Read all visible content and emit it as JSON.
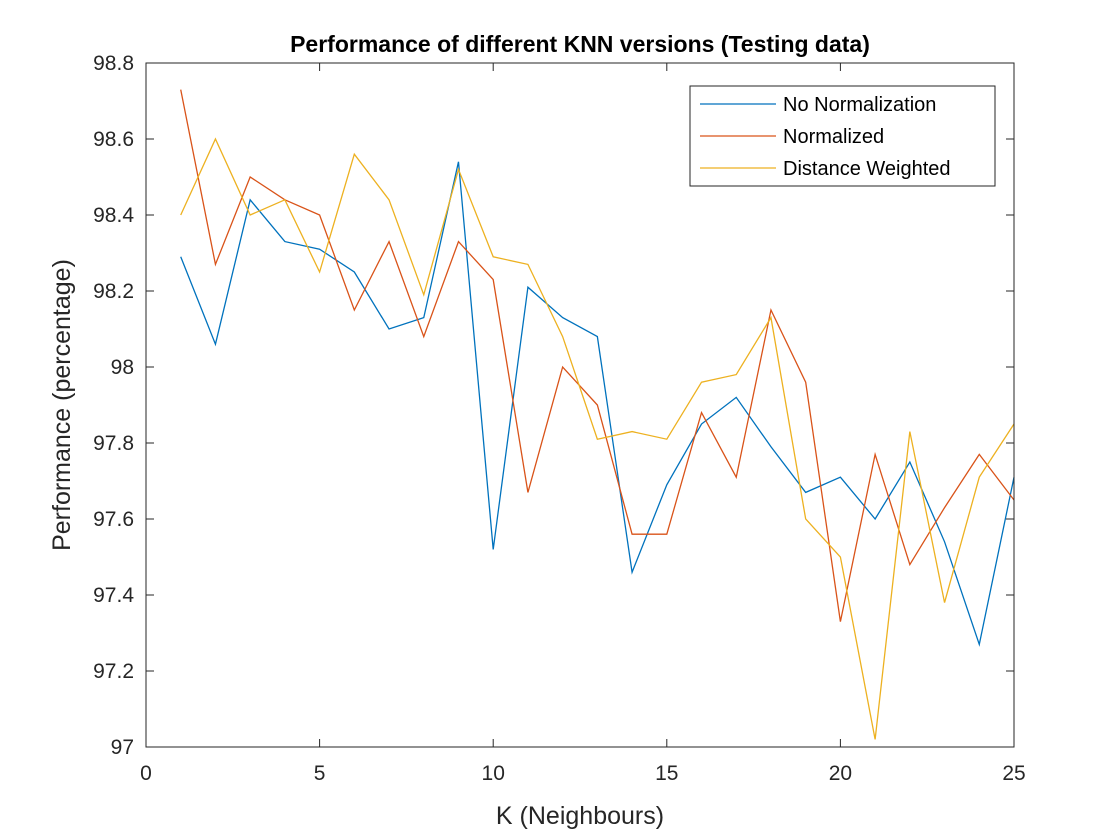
{
  "chart_data": {
    "type": "line",
    "title": "Performance of different KNN versions (Testing data)",
    "xlabel": "K (Neighbours)",
    "ylabel": "Performance (percentage)",
    "xlim": [
      0,
      25
    ],
    "ylim": [
      97,
      98.8
    ],
    "xticks": [
      0,
      5,
      10,
      15,
      20,
      25
    ],
    "yticks": [
      97,
      97.2,
      97.4,
      97.6,
      97.8,
      98,
      98.2,
      98.4,
      98.6,
      98.8
    ],
    "x": [
      1,
      2,
      3,
      4,
      5,
      6,
      7,
      8,
      9,
      10,
      11,
      12,
      13,
      14,
      15,
      16,
      17,
      18,
      19,
      20,
      21,
      22,
      23,
      24,
      25
    ],
    "grid": false,
    "legend_position": "top-right",
    "series": [
      {
        "name": "No Normalization",
        "color": "#0072BD",
        "values": [
          98.29,
          98.06,
          98.44,
          98.33,
          98.31,
          98.25,
          98.1,
          98.13,
          98.54,
          97.52,
          98.21,
          98.13,
          98.08,
          97.46,
          97.69,
          97.85,
          97.92,
          97.79,
          97.67,
          97.71,
          97.6,
          97.75,
          97.54,
          97.27,
          97.71
        ]
      },
      {
        "name": "Normalized",
        "color": "#D95319",
        "values": [
          98.73,
          98.27,
          98.5,
          98.44,
          98.4,
          98.15,
          98.33,
          98.08,
          98.33,
          98.23,
          97.67,
          98.0,
          97.9,
          97.56,
          97.56,
          97.88,
          97.71,
          98.15,
          97.96,
          97.33,
          97.77,
          97.48,
          97.63,
          97.77,
          97.65
        ]
      },
      {
        "name": "Distance Weighted",
        "color": "#EDB120",
        "values": [
          98.4,
          98.6,
          98.4,
          98.44,
          98.25,
          98.56,
          98.44,
          98.19,
          98.52,
          98.29,
          98.27,
          98.08,
          97.81,
          97.83,
          97.81,
          97.96,
          97.98,
          98.13,
          97.6,
          97.5,
          97.02,
          97.83,
          97.38,
          97.71,
          97.85
        ]
      }
    ]
  }
}
